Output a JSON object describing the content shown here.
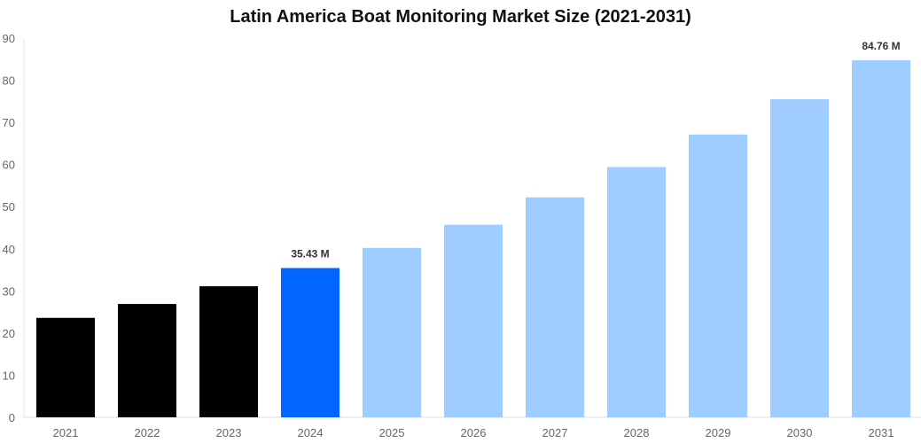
{
  "chart_data": {
    "type": "bar",
    "title": "Latin America Boat Monitoring Market Size (2021-2031)",
    "xlabel": "",
    "ylabel": "",
    "ylim": [
      0,
      90
    ],
    "yticks": [
      "0",
      "10",
      "20",
      "30",
      "40",
      "50",
      "60",
      "70",
      "80",
      "90"
    ],
    "grid": false,
    "categories": [
      "2021",
      "2022",
      "2023",
      "2024",
      "2025",
      "2026",
      "2027",
      "2028",
      "2029",
      "2030",
      "2031"
    ],
    "values": [
      23.6,
      26.9,
      31.1,
      35.43,
      40.2,
      45.7,
      52.2,
      59.4,
      67.1,
      75.5,
      84.76
    ],
    "data_labels": {
      "3": "35.43 M",
      "10": "84.76 M"
    },
    "colors": {
      "historical": "#000000",
      "current": "#0066ff",
      "forecast": "#a0cdff"
    },
    "bar_color_groups": [
      "historical",
      "historical",
      "historical",
      "current",
      "forecast",
      "forecast",
      "forecast",
      "forecast",
      "forecast",
      "forecast",
      "forecast"
    ]
  }
}
